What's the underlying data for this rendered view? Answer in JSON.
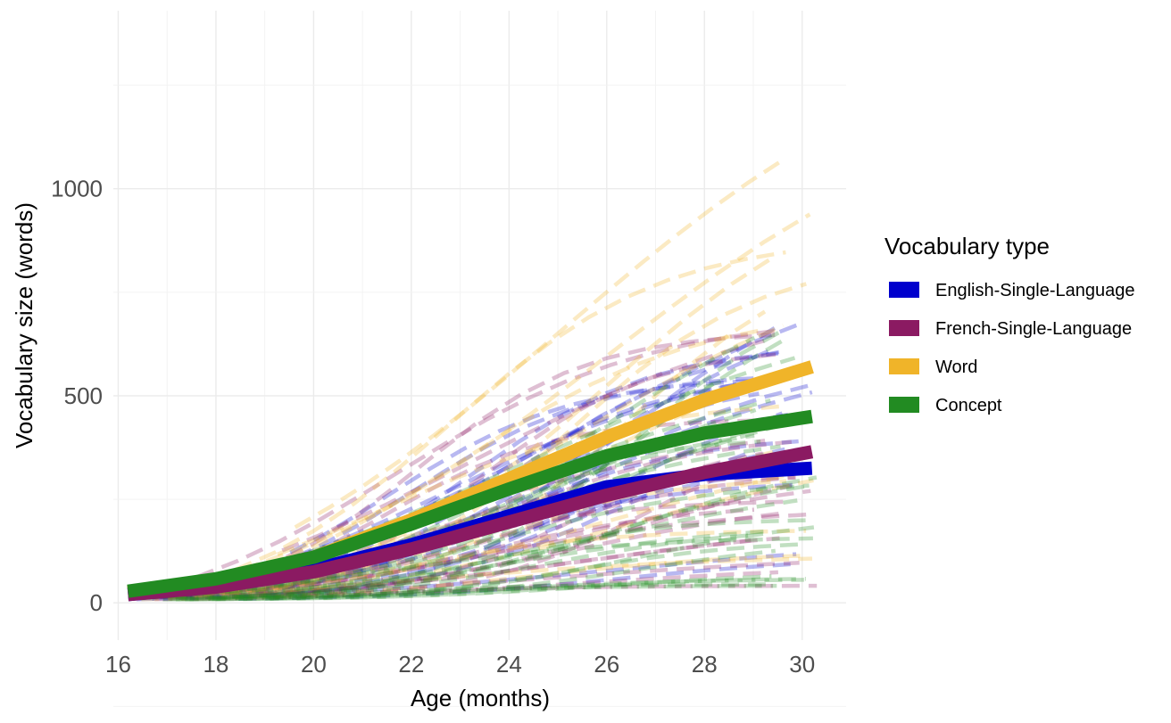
{
  "chart_data": {
    "type": "line",
    "xlabel": "Age (months)",
    "ylabel": "Vocabulary size (words)",
    "xlim": [
      15.9,
      30.9
    ],
    "ylim": [
      -90,
      1430
    ],
    "x_ticks": [
      16,
      18,
      20,
      22,
      24,
      26,
      28,
      30
    ],
    "y_ticks": [
      0,
      500,
      1000
    ],
    "grid": true,
    "legend": {
      "title": "Vocabulary type",
      "position": "right",
      "entries": [
        {
          "label": "English-Single-Language",
          "color": "#0000cd"
        },
        {
          "label": "French-Single-Language",
          "color": "#8b1a62"
        },
        {
          "label": "Word",
          "color": "#f0b429"
        },
        {
          "label": "Concept",
          "color": "#228b22"
        }
      ]
    },
    "x": [
      16.2,
      18,
      20,
      22,
      24,
      26,
      28,
      30.2
    ],
    "series": [
      {
        "name": "English-Single-Language",
        "color": "#0000cd",
        "values": [
          20,
          40,
          80,
          140,
          210,
          280,
          310,
          325
        ]
      },
      {
        "name": "French-Single-Language",
        "color": "#8b1a62",
        "values": [
          20,
          38,
          75,
          130,
          195,
          260,
          315,
          365
        ]
      },
      {
        "name": "Word",
        "color": "#f0b429",
        "values": [
          25,
          55,
          110,
          200,
          300,
          400,
          490,
          570
        ]
      },
      {
        "name": "Concept",
        "color": "#228b22",
        "values": [
          28,
          58,
          110,
          190,
          275,
          355,
          410,
          450
        ]
      }
    ]
  }
}
